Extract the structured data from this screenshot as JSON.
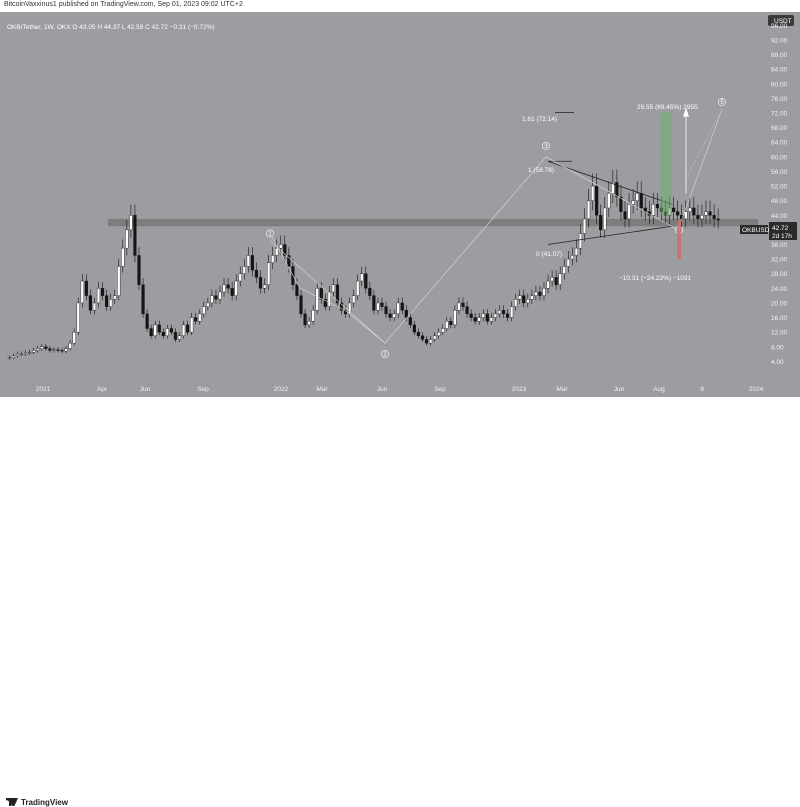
{
  "header": {
    "publish_line": "BitcoinVaxxinus1 published on TradingView.com, Sep 01, 2023 09:02 UTC+2"
  },
  "legend": {
    "text": "OKB/Tether, 1W, OKX  O 43.05  H 44.37  L 42.59  C 42.72  −0.31 (−0.72%)"
  },
  "footer": {
    "brand": "TradingView"
  },
  "price_axis": {
    "currency": "USDT",
    "ticks": [
      "96.00",
      "92.00",
      "88.00",
      "84.00",
      "80.00",
      "76.00",
      "72.00",
      "68.00",
      "64.00",
      "60.00",
      "56.00",
      "52.00",
      "48.00",
      "44.00",
      "40.00",
      "36.00",
      "32.00",
      "28.00",
      "24.00",
      "20.00",
      "16.00",
      "12.00",
      "8.00",
      "4.00"
    ],
    "last_label": "OKBUSDT",
    "last_price": "42.72",
    "countdown": "2d 17h"
  },
  "time_axis": {
    "ticks": [
      "2021",
      "Apr",
      "Jun",
      "Sep",
      "2022",
      "Mar",
      "Jun",
      "Sep",
      "2023",
      "Mar",
      "Jun",
      "Aug",
      "9",
      "2024"
    ]
  },
  "annotations": {
    "fib1": "1.61 (72.14)",
    "fib2": "1 (58.78)",
    "fib3": "0 (41.07)",
    "target": "29.55 (69.45%) 2955",
    "downside": "−10.31 (−24.22%) −1031",
    "waves": [
      "1",
      "2",
      "3",
      "4",
      "5"
    ]
  },
  "colors": {
    "background": "#9c9da1",
    "up": "#ffffff",
    "down": "#151515",
    "support_band": "#737373",
    "target_green": "#6fae6f",
    "target_red": "#d06b6b"
  },
  "chart_data": {
    "type": "candlestick",
    "symbol": "OKB/Tether",
    "interval": "1W",
    "exchange": "OKX",
    "ohlc_last": {
      "open": 43.05,
      "high": 44.37,
      "low": 42.59,
      "close": 42.72,
      "change": -0.31,
      "change_pct": -0.72
    },
    "ylim": [
      0,
      98
    ],
    "support_zone": [
      41,
      43
    ],
    "triangle": {
      "upper_start": 58.78,
      "upper_end": 45,
      "lower_start": 36,
      "lower_end": 41
    },
    "fib_levels": [
      {
        "label": "1.61 (72.14)",
        "value": 72.14
      },
      {
        "label": "1 (58.78)",
        "value": 58.78
      },
      {
        "label": "0 (41.07)",
        "value": 41.07
      }
    ],
    "waves": [
      {
        "label": "1",
        "value": 37
      },
      {
        "label": "2",
        "value": 8
      },
      {
        "label": "3",
        "value": 60
      },
      {
        "label": "4",
        "value": 40
      },
      {
        "label": "5",
        "value": 73
      }
    ],
    "closes": [
      5,
      5.5,
      6,
      6,
      6.3,
      6.5,
      7,
      7.5,
      8,
      7.5,
      7,
      7.2,
      7,
      6.8,
      7.5,
      9,
      12,
      20,
      26,
      22,
      18,
      20,
      24,
      22,
      19,
      21,
      22,
      30,
      35,
      40,
      44,
      33,
      25,
      17,
      13,
      11,
      14,
      12,
      11,
      13,
      12,
      10,
      11,
      14,
      12,
      16,
      15,
      17,
      19,
      20,
      22,
      21,
      23,
      25,
      24,
      22,
      26,
      28,
      30,
      33,
      29,
      27,
      24,
      25,
      31,
      33,
      35,
      36,
      33,
      30,
      25,
      22,
      17,
      14,
      15,
      18,
      24,
      21,
      19,
      23,
      25,
      20,
      18,
      17,
      20,
      22,
      26,
      28,
      24,
      22,
      18,
      20,
      19,
      17,
      16,
      17,
      20,
      18,
      16,
      14,
      12,
      11,
      10,
      9,
      10,
      11,
      12,
      13,
      15,
      14,
      18,
      20,
      19,
      17,
      16,
      15,
      16,
      17,
      15,
      16,
      17,
      18,
      17,
      16,
      19,
      21,
      22,
      20,
      21,
      22,
      23,
      22,
      24,
      26,
      27,
      25,
      28,
      30,
      32,
      33,
      35,
      39,
      43,
      48,
      52,
      44,
      40,
      46,
      50,
      53,
      49,
      45,
      43,
      47,
      48,
      50,
      46,
      45,
      44,
      47,
      46,
      45,
      44,
      46,
      45,
      44,
      43,
      45,
      46,
      44,
      43,
      44,
      45,
      44,
      43,
      42.7
    ]
  }
}
